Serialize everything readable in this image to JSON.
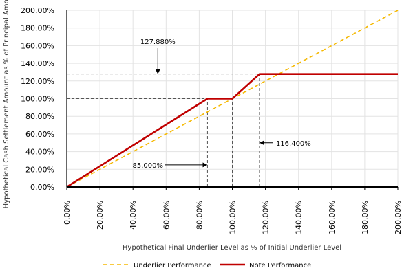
{
  "chart_data": {
    "type": "line",
    "xlabel": "Hypothetical Final Underlier Level as % of Initial Underlier Level",
    "ylabel": "Hypothetical Cash Settlement Amount as % of Principal Amount",
    "xlim": [
      0,
      200
    ],
    "ylim": [
      0,
      200
    ],
    "x_ticks": [
      "0.00%",
      "20.00%",
      "40.00%",
      "60.00%",
      "80.00%",
      "100.00%",
      "120.00%",
      "140.00%",
      "160.00%",
      "180.00%",
      "200.00%"
    ],
    "y_ticks": [
      "0.00%",
      "20.00%",
      "40.00%",
      "60.00%",
      "80.00%",
      "100.00%",
      "120.00%",
      "140.00%",
      "160.00%",
      "180.00%",
      "200.00%"
    ],
    "grid": true,
    "legend": "bottom",
    "series": [
      {
        "name": "Underlier Performance",
        "color": "#f5b800",
        "style": "dashed",
        "points": [
          [
            0,
            0
          ],
          [
            200,
            200
          ]
        ]
      },
      {
        "name": "Note Performance",
        "color": "#c00000",
        "style": "solid",
        "points": [
          [
            0,
            0
          ],
          [
            85,
            100
          ],
          [
            100,
            100
          ],
          [
            116.4,
            127.88
          ],
          [
            200,
            127.88
          ]
        ]
      }
    ],
    "annotations": [
      {
        "text": "127.880%",
        "x": 55,
        "y": 127.88,
        "arrow": "down"
      },
      {
        "text": "85.000%",
        "x": 85,
        "y": 25,
        "arrow": "right"
      },
      {
        "text": "116.400%",
        "x": 116.4,
        "y": 50,
        "arrow": "left"
      }
    ],
    "reference_lines": [
      {
        "type": "horizontal",
        "y": 127.88,
        "x_to": 116.4
      },
      {
        "type": "horizontal",
        "y": 100,
        "x_to": 85
      },
      {
        "type": "vertical",
        "x": 85,
        "y_to": 100
      },
      {
        "type": "vertical",
        "x": 100,
        "y_to": 100
      },
      {
        "type": "vertical",
        "x": 116.4,
        "y_to": 127.88
      }
    ]
  }
}
